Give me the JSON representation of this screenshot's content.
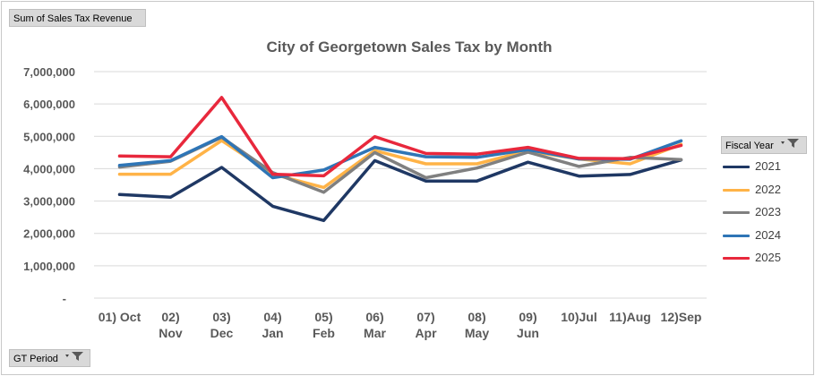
{
  "value_field_button": {
    "label": "Sum of Sales Tax Revenue"
  },
  "axis_field_button": {
    "label": "GT Period"
  },
  "legend": {
    "header": "Fiscal Year"
  },
  "icons": {
    "filter": "filter-funnel-icon",
    "dropdown": "dropdown-arrow-icon"
  },
  "chart_data": {
    "type": "line",
    "title": "City of Georgetown Sales Tax by Month",
    "xlabel": "",
    "ylabel": "",
    "ylim": [
      0,
      7000000
    ],
    "yticks": [
      {
        "value": 0,
        "label": "-"
      },
      {
        "value": 1000000,
        "label": "1,000,000"
      },
      {
        "value": 2000000,
        "label": "2,000,000"
      },
      {
        "value": 3000000,
        "label": "3,000,000"
      },
      {
        "value": 4000000,
        "label": "4,000,000"
      },
      {
        "value": 5000000,
        "label": "5,000,000"
      },
      {
        "value": 6000000,
        "label": "6,000,000"
      },
      {
        "value": 7000000,
        "label": "7,000,000"
      }
    ],
    "grid": true,
    "legend_position": "right",
    "categories": [
      "01) Oct",
      "02) Nov",
      "03) Dec",
      "04) Jan",
      "05) Feb",
      "06) Mar",
      "07) Apr",
      "08) May",
      "09) Jun",
      "10)Jul",
      "11)Aug",
      "12)Sep"
    ],
    "category_lines": [
      [
        "01) Oct"
      ],
      [
        "02)",
        "Nov"
      ],
      [
        "03)",
        "Dec"
      ],
      [
        "04)",
        "Jan"
      ],
      [
        "05)",
        "Feb"
      ],
      [
        "06)",
        "Mar"
      ],
      [
        "07)",
        "Apr"
      ],
      [
        "08)",
        "May"
      ],
      [
        "09)",
        "Jun"
      ],
      [
        "10)Jul"
      ],
      [
        "11)Aug"
      ],
      [
        "12)Sep"
      ]
    ],
    "series": [
      {
        "name": "2021",
        "color": "#1f3864",
        "values": [
          3200000,
          3120000,
          4040000,
          2840000,
          2400000,
          4250000,
          3620000,
          3620000,
          4200000,
          3770000,
          3820000,
          4270000
        ]
      },
      {
        "name": "2022",
        "color": "#ffb347",
        "values": [
          3830000,
          3830000,
          4870000,
          3830000,
          3420000,
          4560000,
          4150000,
          4150000,
          4550000,
          4300000,
          4150000,
          4750000
        ]
      },
      {
        "name": "2023",
        "color": "#808080",
        "values": [
          4050000,
          4230000,
          4970000,
          3880000,
          3270000,
          4500000,
          3720000,
          4020000,
          4510000,
          4070000,
          4350000,
          4280000
        ]
      },
      {
        "name": "2024",
        "color": "#2e75b6",
        "values": [
          4100000,
          4250000,
          4990000,
          3720000,
          3960000,
          4660000,
          4370000,
          4350000,
          4590000,
          4300000,
          4290000,
          4860000
        ]
      },
      {
        "name": "2025",
        "color": "#e8283c",
        "values": [
          4390000,
          4370000,
          6200000,
          3830000,
          3780000,
          4990000,
          4470000,
          4450000,
          4660000,
          4320000,
          4310000,
          4720000
        ]
      }
    ]
  }
}
